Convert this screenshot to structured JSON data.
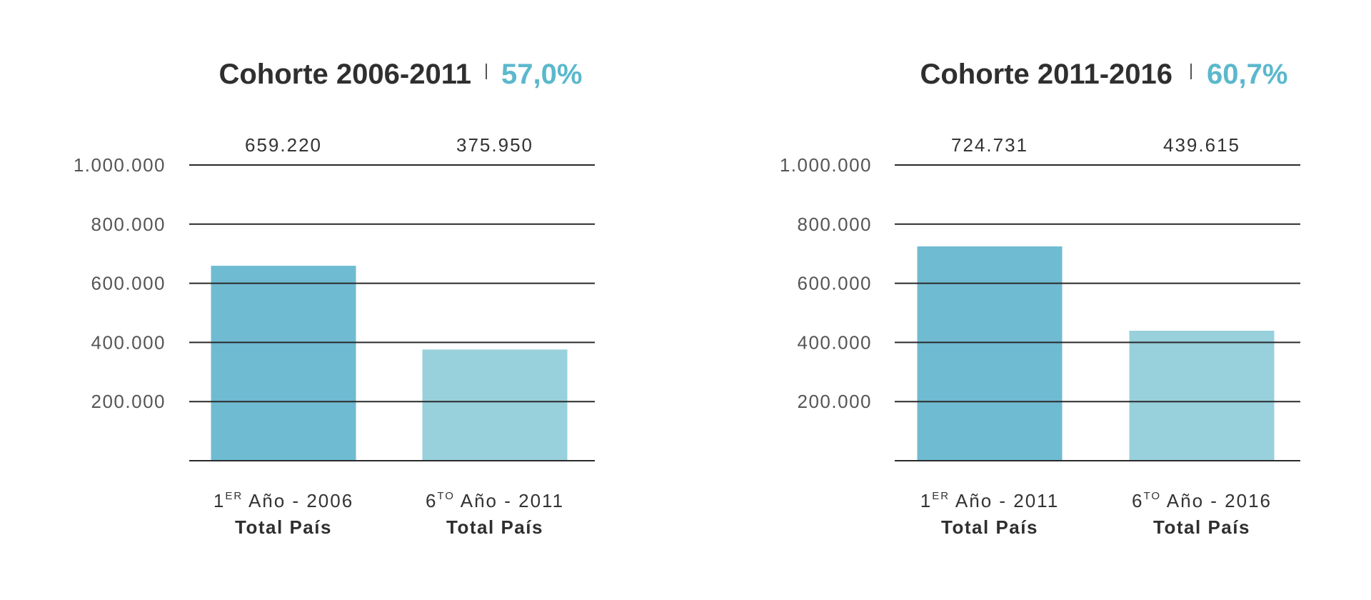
{
  "colors": {
    "accent": "#5bb8cc",
    "bar_first": "#6fbbd2",
    "bar_sixth": "#98d0dc",
    "grid": "#2a2a2a",
    "title": "#2f2f2f"
  },
  "chart_data": [
    {
      "type": "bar",
      "title": "Cohorte 2006-2011",
      "highlight_value": "57,0%",
      "categories": [
        {
          "prefix": "1",
          "sup": "ER",
          "rest": " Año - 2006",
          "sub": "Total País"
        },
        {
          "prefix": "6",
          "sup": "TO",
          "rest": " Año - 2011",
          "sub": "Total País"
        }
      ],
      "values": [
        659220,
        375950
      ],
      "value_labels": [
        "659.220",
        "375.950"
      ],
      "yticks": [
        200000,
        400000,
        600000,
        800000,
        1000000
      ],
      "ytick_labels": [
        "200.000",
        "400.000",
        "600.000",
        "800.000",
        "1.000.000"
      ],
      "ylim": [
        0,
        1000000
      ],
      "grid": true,
      "xlabel": "",
      "ylabel": ""
    },
    {
      "type": "bar",
      "title": "Cohorte 2011-2016",
      "highlight_value": "60,7%",
      "categories": [
        {
          "prefix": "1",
          "sup": "ER",
          "rest": " Año - 2011",
          "sub": "Total País"
        },
        {
          "prefix": "6",
          "sup": "TO",
          "rest": " Año - 2016",
          "sub": "Total País"
        }
      ],
      "values": [
        724731,
        439615
      ],
      "value_labels": [
        "724.731",
        "439.615"
      ],
      "yticks": [
        200000,
        400000,
        600000,
        800000,
        1000000
      ],
      "ytick_labels": [
        "200.000",
        "400.000",
        "600.000",
        "800.000",
        "1.000.000"
      ],
      "ylim": [
        0,
        1000000
      ],
      "grid": true,
      "xlabel": "",
      "ylabel": ""
    }
  ]
}
